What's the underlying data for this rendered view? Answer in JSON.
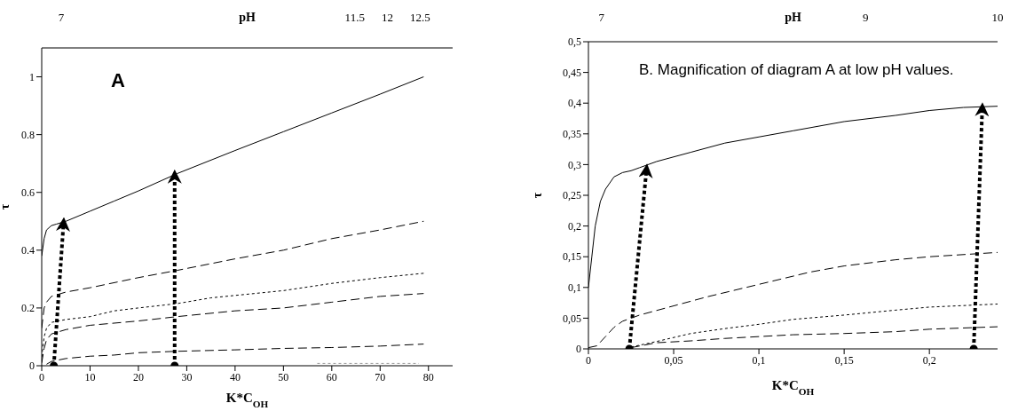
{
  "chart_data": [
    {
      "type": "line",
      "annotations": [
        "A"
      ],
      "xlabel": "K*C$_{OH}$",
      "ylabel": "τ",
      "x2label": "pH",
      "xlim": [
        0,
        85
      ],
      "xticks": [
        0,
        10,
        20,
        30,
        40,
        50,
        60,
        70,
        80
      ],
      "ylim": [
        0,
        1.1
      ],
      "yticks": [
        0,
        0.2,
        0.4,
        0.6,
        0.8,
        1
      ],
      "x2lim": [
        6.7,
        13
      ],
      "x2ticks": [
        7,
        11.5,
        12,
        12.5
      ],
      "marker": "none",
      "series": [
        {
          "color": "#000000",
          "line_style": "solid",
          "x": [
            0,
            0.5,
            1,
            2,
            3,
            5,
            10,
            15,
            20,
            28,
            40,
            50,
            60,
            70,
            79
          ],
          "values": [
            0.38,
            0.44,
            0.47,
            0.485,
            0.49,
            0.5,
            0.535,
            0.57,
            0.605,
            0.665,
            0.745,
            0.81,
            0.875,
            0.94,
            1.0
          ]
        },
        {
          "color": "#000000",
          "line_style": "dashed",
          "x": [
            0,
            0.5,
            1,
            2,
            5,
            10,
            20,
            28,
            40,
            50,
            60,
            70,
            79
          ],
          "values": [
            0.13,
            0.2,
            0.22,
            0.24,
            0.255,
            0.27,
            0.305,
            0.33,
            0.37,
            0.4,
            0.44,
            0.47,
            0.5
          ]
        },
        {
          "color": "#000000",
          "line_style": "dotted",
          "x": [
            0,
            0.5,
            1,
            2,
            5,
            10,
            15,
            20,
            28,
            35,
            50,
            60,
            70,
            79
          ],
          "values": [
            0.03,
            0.1,
            0.13,
            0.15,
            0.16,
            0.17,
            0.19,
            0.2,
            0.215,
            0.235,
            0.26,
            0.285,
            0.305,
            0.32
          ]
        },
        {
          "color": "#000000",
          "line_style": "dashed",
          "x": [
            0,
            0.5,
            1,
            2,
            5,
            10,
            20,
            28,
            40,
            50,
            60,
            70,
            79
          ],
          "values": [
            0.01,
            0.06,
            0.09,
            0.11,
            0.125,
            0.14,
            0.155,
            0.17,
            0.19,
            0.2,
            0.22,
            0.24,
            0.25
          ]
        },
        {
          "color": "#000000",
          "line_style": "dashed",
          "x": [
            1,
            2,
            5,
            10,
            15,
            20,
            28,
            40,
            50,
            60,
            70,
            79
          ],
          "values": [
            0.005,
            0.015,
            0.025,
            0.033,
            0.037,
            0.045,
            0.05,
            0.055,
            0.06,
            0.063,
            0.068,
            0.075
          ]
        },
        {
          "color": "#999999",
          "line_style": "dotted",
          "x": [
            57,
            78
          ],
          "values": [
            0.008,
            0.008
          ]
        },
        {
          "color": "#000000",
          "line_style": "dotted",
          "marker": "none",
          "x": [
            2.5,
            4.5
          ],
          "values": [
            0,
            0.49
          ]
        },
        {
          "color": "#000000",
          "line_style": "dotted",
          "marker": "none",
          "x": [
            27.5,
            27.5
          ],
          "values": [
            0,
            0.655
          ]
        },
        {
          "type": "scatter",
          "color": "#000000",
          "marker": "circle",
          "x": [
            2.5,
            27.5
          ],
          "values": [
            0,
            0
          ]
        }
      ]
    },
    {
      "type": "line",
      "annotations": [
        "B. Magnification of diagram A at low pH values."
      ],
      "xlabel": "K*C$_{OH}$",
      "ylabel": "τ",
      "x2label": "pH",
      "xlim": [
        0,
        0.24
      ],
      "xticks": [
        0,
        {
          "value": 0.05,
          "label": "0,05"
        },
        {
          "value": 0.1,
          "label": "0,1"
        },
        {
          "value": 0.15,
          "label": "0,15"
        },
        {
          "value": 0.2,
          "label": "0,2"
        }
      ],
      "ylim": [
        0,
        0.5
      ],
      "yticks": [
        0,
        {
          "value": 0.05,
          "label": "0,05"
        },
        {
          "value": 0.1,
          "label": "0,1"
        },
        {
          "value": 0.15,
          "label": "0,15"
        },
        {
          "value": 0.2,
          "label": "0,2"
        },
        {
          "value": 0.25,
          "label": "0,25"
        },
        {
          "value": 0.3,
          "label": "0,3"
        },
        {
          "value": 0.35,
          "label": "0,35"
        },
        {
          "value": 0.4,
          "label": "0,4"
        },
        {
          "value": 0.45,
          "label": "0,45"
        },
        {
          "value": 0.5,
          "label": "0,5"
        }
      ],
      "x2lim": [
        6.9,
        10
      ],
      "x2ticks": [
        7,
        9,
        10
      ],
      "marker": "none",
      "series": [
        {
          "color": "#000000",
          "line_style": "solid",
          "x": [
            0,
            0.002,
            0.004,
            0.007,
            0.01,
            0.015,
            0.02,
            0.025,
            0.03,
            0.04,
            0.06,
            0.08,
            0.1,
            0.12,
            0.15,
            0.18,
            0.2,
            0.22,
            0.24
          ],
          "values": [
            0.1,
            0.15,
            0.2,
            0.24,
            0.26,
            0.28,
            0.287,
            0.29,
            0.295,
            0.305,
            0.32,
            0.335,
            0.345,
            0.355,
            0.37,
            0.38,
            0.388,
            0.393,
            0.395
          ]
        },
        {
          "color": "#000000",
          "line_style": "dashed",
          "x": [
            0,
            0.005,
            0.01,
            0.015,
            0.02,
            0.03,
            0.05,
            0.07,
            0.1,
            0.13,
            0.15,
            0.18,
            0.2,
            0.24
          ],
          "values": [
            0.002,
            0.005,
            0.02,
            0.035,
            0.045,
            0.055,
            0.07,
            0.085,
            0.105,
            0.125,
            0.135,
            0.145,
            0.15,
            0.157
          ]
        },
        {
          "color": "#000000",
          "line_style": "dotted",
          "x": [
            0.025,
            0.04,
            0.06,
            0.08,
            0.1,
            0.12,
            0.15,
            0.18,
            0.2,
            0.24
          ],
          "values": [
            0.003,
            0.012,
            0.025,
            0.033,
            0.04,
            0.048,
            0.055,
            0.063,
            0.068,
            0.073
          ]
        },
        {
          "color": "#000000",
          "line_style": "dashed",
          "x": [
            0.025,
            0.04,
            0.06,
            0.08,
            0.1,
            0.12,
            0.15,
            0.18,
            0.2,
            0.24
          ],
          "values": [
            0.002,
            0.01,
            0.013,
            0.017,
            0.02,
            0.023,
            0.025,
            0.028,
            0.032,
            0.036
          ]
        },
        {
          "color": "#000000",
          "line_style": "dotted",
          "marker": "none",
          "x": [
            0.024,
            0.034
          ],
          "values": [
            0,
            0.29
          ]
        },
        {
          "color": "#000000",
          "line_style": "dotted",
          "marker": "none",
          "x": [
            0.226,
            0.231
          ],
          "values": [
            0,
            0.39
          ]
        },
        {
          "type": "scatter",
          "color": "#000000",
          "marker": "circle",
          "x": [
            0.024,
            0.226
          ],
          "values": [
            0,
            0
          ]
        }
      ]
    }
  ]
}
